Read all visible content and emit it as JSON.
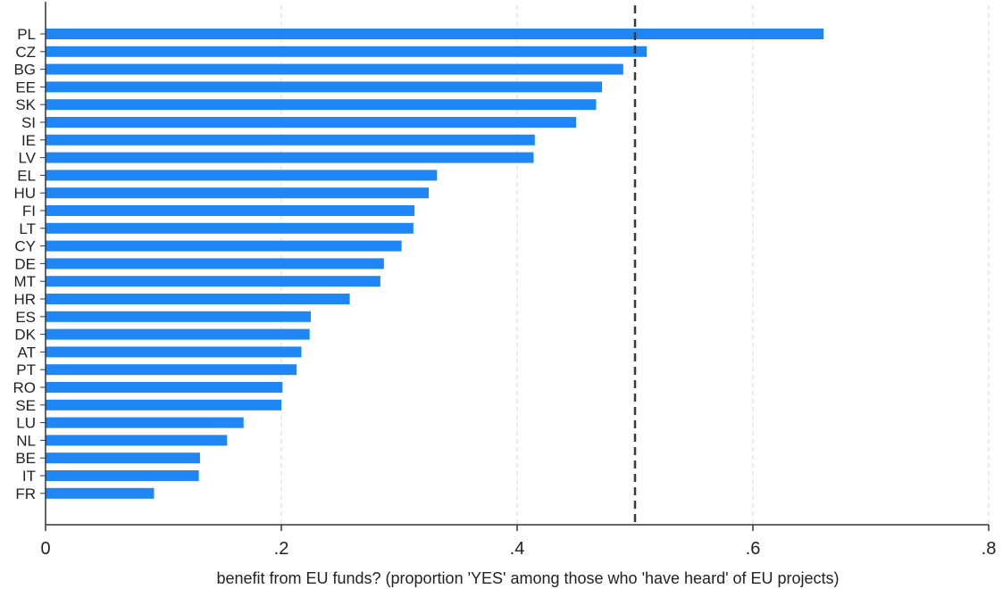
{
  "chart_data": {
    "type": "bar",
    "orientation": "horizontal",
    "categories": [
      "PL",
      "CZ",
      "BG",
      "EE",
      "SK",
      "SI",
      "IE",
      "LV",
      "EL",
      "HU",
      "FI",
      "LT",
      "CY",
      "DE",
      "MT",
      "HR",
      "ES",
      "DK",
      "AT",
      "PT",
      "RO",
      "SE",
      "LU",
      "NL",
      "BE",
      "IT",
      "FR"
    ],
    "values": [
      0.66,
      0.51,
      0.49,
      0.472,
      0.467,
      0.45,
      0.415,
      0.414,
      0.332,
      0.325,
      0.313,
      0.312,
      0.302,
      0.287,
      0.284,
      0.258,
      0.225,
      0.224,
      0.217,
      0.213,
      0.201,
      0.2,
      0.168,
      0.154,
      0.131,
      0.13,
      0.092
    ],
    "xlim": [
      0,
      0.8
    ],
    "xticks": [
      0,
      0.2,
      0.4,
      0.6,
      0.8
    ],
    "xtick_labels": [
      "0",
      ".2",
      ".4",
      ".6",
      ".8"
    ],
    "xlabel": "benefit from EU funds? (proportion 'YES' among those who 'have heard' of EU projects)",
    "ylabel": "",
    "title": "",
    "reference_line": {
      "x": 0.5,
      "style": "dashed"
    },
    "grid": "vertical dashed",
    "bar_color": "#1e87f5"
  }
}
